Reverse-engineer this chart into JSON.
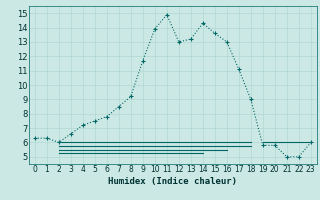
{
  "xlabel": "Humidex (Indice chaleur)",
  "bg_color": "#cce8e4",
  "grid_color": "#b0d8d4",
  "line_color": "#006666",
  "xlim": [
    -0.5,
    23.5
  ],
  "ylim": [
    4.5,
    15.5
  ],
  "xticks": [
    0,
    1,
    2,
    3,
    4,
    5,
    6,
    7,
    8,
    9,
    10,
    11,
    12,
    13,
    14,
    15,
    16,
    17,
    18,
    19,
    20,
    21,
    22,
    23
  ],
  "yticks": [
    5,
    6,
    7,
    8,
    9,
    10,
    11,
    12,
    13,
    14,
    15
  ],
  "main_x": [
    0,
    1,
    2,
    3,
    4,
    5,
    6,
    7,
    8,
    9,
    10,
    11,
    12,
    13,
    14,
    15,
    16,
    17,
    18,
    19,
    20,
    21,
    22,
    23
  ],
  "main_y": [
    6.3,
    6.3,
    6.0,
    6.6,
    7.2,
    7.5,
    7.8,
    8.5,
    9.2,
    11.7,
    13.9,
    14.9,
    13.0,
    13.2,
    14.3,
    13.6,
    13.0,
    11.1,
    9.0,
    5.8,
    5.8,
    5.0,
    5.0,
    6.0
  ],
  "flat_lines": [
    {
      "x": [
        2,
        18
      ],
      "y": [
        6.0,
        6.0
      ]
    },
    {
      "x": [
        2,
        18
      ],
      "y": [
        5.75,
        5.75
      ]
    },
    {
      "x": [
        2,
        16
      ],
      "y": [
        5.5,
        5.5
      ]
    },
    {
      "x": [
        2,
        14
      ],
      "y": [
        5.25,
        5.25
      ]
    },
    {
      "x": [
        19,
        23
      ],
      "y": [
        6.0,
        6.0
      ]
    }
  ]
}
